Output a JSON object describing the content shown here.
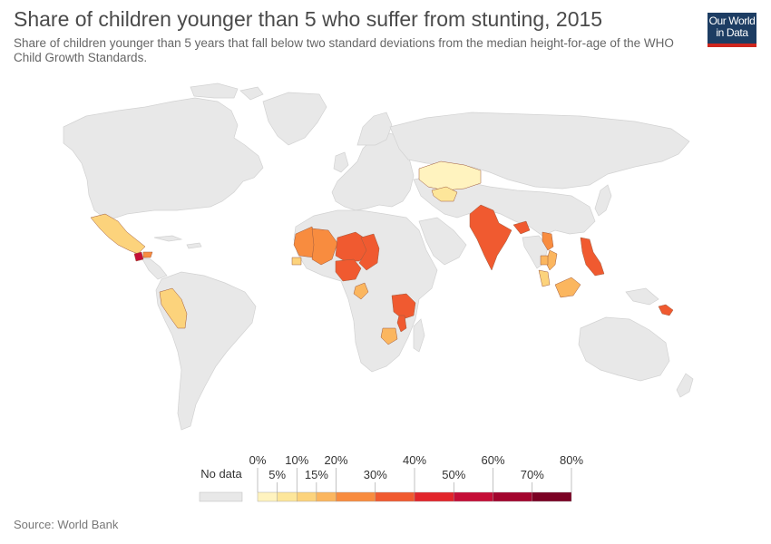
{
  "title": "Share of children younger than 5 who suffer from stunting, 2015",
  "subtitle": "Share of children younger than 5 years that fall below two standard deviations from the median height-for-age of the WHO Child Growth Standards.",
  "logo": {
    "line1": "Our World",
    "line2": "in Data"
  },
  "source": "Source: World Bank",
  "colors": {
    "no_data": "#e8e8e8",
    "border": "#cfcfcf",
    "bins": [
      "#fff3bf",
      "#fde69a",
      "#fcd37c",
      "#fbb65f",
      "#f88c3f",
      "#f05a30",
      "#e2252b",
      "#c50e37",
      "#a3052e",
      "#7b0224"
    ]
  },
  "legend": {
    "no_data_label": "No data",
    "ticks_top": [
      "0%",
      "10%",
      "20%",
      "40%",
      "60%",
      "80%"
    ],
    "ticks_bottom": [
      "5%",
      "15%",
      "30%",
      "50%",
      "70%"
    ]
  },
  "countries": [
    {
      "name": "Mexico",
      "bin": 2
    },
    {
      "name": "Guatemala",
      "bin": 7
    },
    {
      "name": "Honduras",
      "bin": 4
    },
    {
      "name": "Peru",
      "bin": 2
    },
    {
      "name": "Mauritania",
      "bin": 4
    },
    {
      "name": "Mali",
      "bin": 4
    },
    {
      "name": "Senegal",
      "bin": 2
    },
    {
      "name": "Niger",
      "bin": 5
    },
    {
      "name": "Nigeria",
      "bin": 5
    },
    {
      "name": "Chad",
      "bin": 5
    },
    {
      "name": "Gabon",
      "bin": 3
    },
    {
      "name": "Tanzania",
      "bin": 5
    },
    {
      "name": "Malawi",
      "bin": 5
    },
    {
      "name": "Zimbabwe",
      "bin": 3
    },
    {
      "name": "Kazakhstan",
      "bin": 0
    },
    {
      "name": "Turkmenistan",
      "bin": 1
    },
    {
      "name": "India",
      "bin": 5
    },
    {
      "name": "Bangladesh",
      "bin": 5
    },
    {
      "name": "Laos",
      "bin": 4
    },
    {
      "name": "Vietnam",
      "bin": 3
    },
    {
      "name": "Cambodia",
      "bin": 3
    },
    {
      "name": "Malaysia",
      "bin": 2
    },
    {
      "name": "Philippines",
      "bin": 5
    },
    {
      "name": "Indonesia",
      "bin": 3
    },
    {
      "name": "Solomon Islands",
      "bin": 5
    }
  ]
}
